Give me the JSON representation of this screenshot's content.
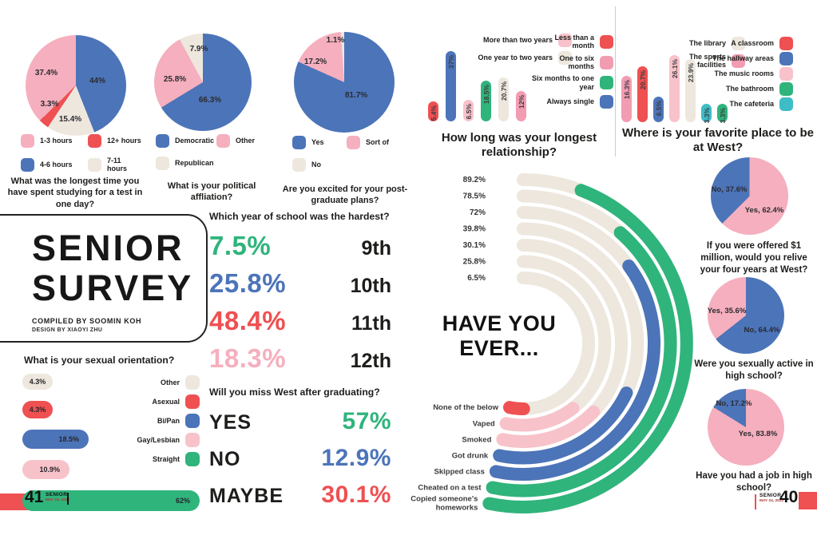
{
  "palette": {
    "red": "#EF5052",
    "blue": "#4C74B9",
    "green": "#2FB47C",
    "teal": "#3EBDC6",
    "cream": "#EDE7DD",
    "pink": "#F29CB2",
    "lightpink": "#F8C2CA",
    "piepink": "#F5AFBE",
    "ink": "#1d1d1b"
  },
  "chart_data": [
    {
      "id": "studying-time",
      "type": "pie",
      "title": "What was the longest time you have spent studying for a test in one day?",
      "slices": [
        {
          "label": "4-6 hours",
          "value": 44,
          "text": "44%",
          "color": "blue"
        },
        {
          "label": "7-11 hours",
          "value": 15.4,
          "text": "15.4%",
          "color": "cream"
        },
        {
          "label": "12+ hours",
          "value": 3.3,
          "text": "3.3%",
          "color": "red"
        },
        {
          "label": "1-3 hours",
          "value": 37.4,
          "text": "37.4%",
          "color": "piepink"
        }
      ],
      "legend": [
        {
          "label": "1-3 hours",
          "color": "piepink"
        },
        {
          "label": "12+ hours",
          "color": "red"
        },
        {
          "label": "4-6 hours",
          "color": "blue"
        },
        {
          "label": "7-11 hours",
          "color": "cream"
        }
      ]
    },
    {
      "id": "political",
      "type": "pie",
      "title": "What is your political affliation?",
      "slices": [
        {
          "label": "Democratic",
          "value": 66.3,
          "text": "66.3%",
          "color": "blue"
        },
        {
          "label": "Other",
          "value": 25.8,
          "text": "25.8%",
          "color": "piepink"
        },
        {
          "label": "Republican",
          "value": 7.9,
          "text": "7.9%",
          "color": "cream"
        }
      ],
      "legend": [
        {
          "label": "Democratic",
          "color": "blue"
        },
        {
          "label": "Other",
          "color": "piepink"
        },
        {
          "label": "Republican",
          "color": "cream"
        }
      ]
    },
    {
      "id": "postgrad",
      "type": "pie",
      "title": "Are you excited for your post-graduate plans?",
      "slices": [
        {
          "label": "Yes",
          "value": 81.7,
          "text": "81.7%",
          "color": "blue"
        },
        {
          "label": "Sort of",
          "value": 17.2,
          "text": "17.2%",
          "color": "piepink"
        },
        {
          "label": "No",
          "value": 1.1,
          "text": "1.1%",
          "color": "cream"
        }
      ],
      "legend": [
        {
          "label": "Yes",
          "color": "blue"
        },
        {
          "label": "Sort of",
          "color": "piepink"
        },
        {
          "label": "No",
          "color": "cream"
        }
      ]
    },
    {
      "id": "longest-relationship",
      "type": "bar",
      "title": "How long was your longest relationship?",
      "bars": [
        {
          "label": "Less than a month",
          "value": 5.4,
          "text": "5.4%",
          "color": "red"
        },
        {
          "label": "Always single",
          "value": 37,
          "text": "37%",
          "color": "blue"
        },
        {
          "label": "More than two years",
          "value": 6.5,
          "text": "6.5%",
          "color": "lightpink"
        },
        {
          "label": "Six months to one year",
          "value": 18.5,
          "text": "18.5%",
          "color": "green"
        },
        {
          "label": "One year to two years",
          "value": 20.7,
          "text": "20.7%",
          "color": "cream"
        },
        {
          "label": "One to six months",
          "value": 12,
          "text": "12%",
          "color": "pink"
        }
      ],
      "legend_left": [
        {
          "label": "More than two years",
          "color": "lightpink"
        },
        {
          "label": "One year to two years",
          "color": "cream"
        }
      ],
      "legend_right": [
        {
          "label": "Less than a month",
          "color": "red"
        },
        {
          "label": "One to six months",
          "color": "pink"
        },
        {
          "label": "Six months to one year",
          "color": "green"
        },
        {
          "label": "Always single",
          "color": "blue"
        }
      ]
    },
    {
      "id": "favorite-place",
      "type": "bar",
      "title": "Where is your favorite place to be at West?",
      "bars": [
        {
          "label": "The sports facilities",
          "value": 16.3,
          "text": "16.3%",
          "color": "pink"
        },
        {
          "label": "A classroom",
          "value": 20.7,
          "text": "20.7%",
          "color": "red"
        },
        {
          "label": "The hallway areas",
          "value": 6.5,
          "text": "6.5%",
          "color": "blue"
        },
        {
          "label": "The music rooms",
          "value": 26.1,
          "text": "26.1%",
          "color": "lightpink"
        },
        {
          "label": "The library",
          "value": 23.9,
          "text": "23.9%",
          "color": "cream"
        },
        {
          "label": "The cafeteria",
          "value": 3.3,
          "text": "3.3%",
          "color": "teal"
        },
        {
          "label": "The bathroom",
          "value": 3.3,
          "text": "3.3%",
          "color": "green"
        }
      ],
      "legend_left": [
        {
          "label": "The library",
          "color": "cream"
        },
        {
          "label": "The sports facilities",
          "color": "pink"
        }
      ],
      "legend_right": [
        {
          "label": "A classroom",
          "color": "red"
        },
        {
          "label": "The hallway areas",
          "color": "blue"
        },
        {
          "label": "The music rooms",
          "color": "lightpink"
        },
        {
          "label": "The bathroom",
          "color": "green"
        },
        {
          "label": "The cafeteria",
          "color": "teal"
        }
      ]
    },
    {
      "id": "hardest-year",
      "type": "table",
      "title": "Which year of school was the hardest?",
      "rows": [
        {
          "pct": "7.5%",
          "color": "green",
          "grade": "9th"
        },
        {
          "pct": "25.8%",
          "color": "blue",
          "grade": "10th"
        },
        {
          "pct": "48.4%",
          "color": "red",
          "grade": "11th"
        },
        {
          "pct": "18.3%",
          "color": "piepink",
          "grade": "12th"
        }
      ]
    },
    {
      "id": "miss-west",
      "type": "table",
      "title": "Will you miss West after graduating?",
      "rows": [
        {
          "answer": "YES",
          "pct": "57%",
          "color": "green"
        },
        {
          "answer": "NO",
          "pct": "12.9%",
          "color": "blue"
        },
        {
          "answer": "MAYBE",
          "pct": "30.1%",
          "color": "red"
        }
      ]
    },
    {
      "id": "sexual-orientation",
      "type": "bar",
      "title": "What is your sexual orientation?",
      "bars": [
        {
          "label": "Other",
          "value": 4.3,
          "text": "4.3%",
          "color": "cream"
        },
        {
          "label": "Asexual",
          "value": 4.3,
          "text": "4.3%",
          "color": "red"
        },
        {
          "label": "Bi/Pan",
          "value": 18.5,
          "text": "18.5%",
          "color": "blue"
        },
        {
          "label": "Gay/Lesbian",
          "value": 10.9,
          "text": "10.9%",
          "color": "lightpink"
        },
        {
          "label": "Straight",
          "value": 62,
          "text": "62%",
          "color": "green"
        }
      ],
      "legend": [
        {
          "label": "Other",
          "color": "cream"
        },
        {
          "label": "Asexual",
          "color": "red"
        },
        {
          "label": "Bi/Pan",
          "color": "blue"
        },
        {
          "label": "Gay/Lesbian",
          "color": "lightpink"
        },
        {
          "label": "Straight",
          "color": "green"
        }
      ]
    },
    {
      "id": "have-you-ever",
      "type": "radial",
      "title": "HAVE YOU EVER...",
      "title_lines": [
        "HAVE YOU",
        "EVER..."
      ],
      "rings": [
        {
          "label": "Copied someone's\nhomeworks",
          "value": 89.2,
          "text": "89.2%",
          "color": "green"
        },
        {
          "label": "Cheated on a test",
          "value": 78.5,
          "text": "78.5%",
          "color": "green"
        },
        {
          "label": "Skipped class",
          "value": 72,
          "text": "72%",
          "color": "blue"
        },
        {
          "label": "Got drunk",
          "value": 39.8,
          "text": "39.8%",
          "color": "blue"
        },
        {
          "label": "Smoked",
          "value": 30.1,
          "text": "30.1%",
          "color": "lightpink"
        },
        {
          "label": "Vaped",
          "value": 25.8,
          "text": "25.8%",
          "color": "lightpink"
        },
        {
          "label": "None of the below",
          "value": 6.5,
          "text": "6.5%",
          "color": "red"
        }
      ]
    },
    {
      "id": "million-relive",
      "type": "pie",
      "title": "If you were offered $1 million, would you relive your four years at West?",
      "slices": [
        {
          "label": "Yes",
          "value": 62.4,
          "text": "Yes, 62.4%",
          "color": "piepink"
        },
        {
          "label": "No",
          "value": 37.6,
          "text": "No, 37.6%",
          "color": "blue"
        }
      ]
    },
    {
      "id": "sexually-active",
      "type": "pie",
      "title": "Were you sexually active in high school?",
      "slices": [
        {
          "label": "No",
          "value": 64.4,
          "text": "No, 64.4%",
          "color": "blue"
        },
        {
          "label": "Yes",
          "value": 35.6,
          "text": "Yes, 35.6%",
          "color": "piepink"
        }
      ]
    },
    {
      "id": "job",
      "type": "pie",
      "title": "Have you had a job in high school?",
      "slices": [
        {
          "label": "Yes",
          "value": 83.8,
          "text": "Yes, 83.8%",
          "color": "piepink"
        },
        {
          "label": "No",
          "value": 17.2,
          "text": "No, 17.2%",
          "color": "blue"
        }
      ]
    }
  ],
  "masthead": {
    "title_line1": "SENIOR",
    "title_line2": "SURVEY",
    "compiled_by": "COMPILED BY SOOMIN KOH",
    "design_by": "DESIGN BY XIAOYI ZHU"
  },
  "footer_left": {
    "page_number": "41",
    "section": "SENIOR",
    "date": "MAY 24, 2022"
  },
  "footer_right": {
    "page_number": "40",
    "section": "SENIOR",
    "date": "MAY 24, 2022"
  }
}
